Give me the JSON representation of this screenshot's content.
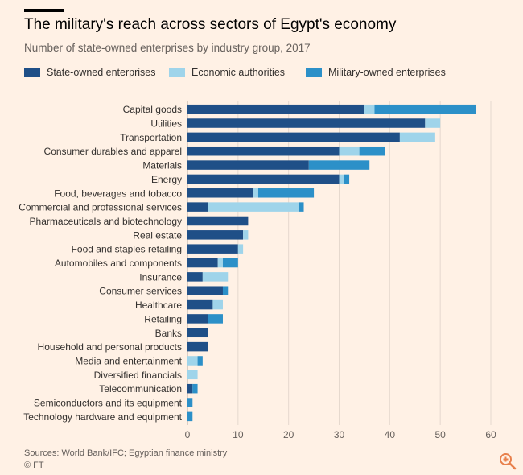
{
  "header": {
    "title": "The military's reach across sectors of Egypt's economy",
    "subtitle": "Number of state-owned enterprises by industry group, 2017"
  },
  "legend": {
    "items": [
      {
        "label": "State-owned enterprises",
        "color": "#1f4f87"
      },
      {
        "label": "Economic authorities",
        "color": "#9fd4ea"
      },
      {
        "label": "Military-owned enterprises",
        "color": "#2c90c8"
      }
    ]
  },
  "footer": {
    "source": "Sources: World Bank/IFC; Egyptian finance ministry",
    "credit": "© FT"
  },
  "toolbar": {
    "zoom_icon": "zoom-in-icon"
  },
  "chart_data": {
    "type": "bar",
    "orientation": "horizontal",
    "stacked": true,
    "title": "The military's reach across sectors of Egypt's economy",
    "subtitle": "Number of state-owned enterprises by industry group, 2017",
    "xlim": [
      0,
      60
    ],
    "xticks": [
      0,
      10,
      20,
      30,
      40,
      50,
      60
    ],
    "grid": "vertical",
    "legend_position": "top-left",
    "categories": [
      "Capital goods",
      "Utilities",
      "Transportation",
      "Consumer durables and apparel",
      "Materials",
      "Energy",
      "Food, beverages and tobacco",
      "Commercial and professional services",
      "Pharmaceuticals and biotechnology",
      "Real estate",
      "Food and staples retailing",
      "Automobiles and components",
      "Insurance",
      "Consumer services",
      "Healthcare",
      "Retailing",
      "Banks",
      "Household and personal products",
      "Media and entertainment",
      "Diversified financials",
      "Telecommunication",
      "Semiconductors and its equipment",
      "Technology hardware and equipment"
    ],
    "series": [
      {
        "name": "State-owned enterprises",
        "color": "#1f4f87",
        "values": [
          35,
          47,
          42,
          30,
          24,
          30,
          13,
          4,
          12,
          11,
          10,
          6,
          3,
          7,
          5,
          4,
          4,
          4,
          0,
          0,
          1,
          0,
          0
        ]
      },
      {
        "name": "Economic authorities",
        "color": "#9fd4ea",
        "values": [
          2,
          3,
          7,
          4,
          0,
          1,
          1,
          18,
          0,
          1,
          1,
          1,
          5,
          0,
          2,
          0,
          0,
          0,
          2,
          2,
          0,
          0,
          0
        ]
      },
      {
        "name": "Military-owned enterprises",
        "color": "#2c90c8",
        "values": [
          20,
          0,
          0,
          5,
          12,
          1,
          11,
          1,
          0,
          0,
          0,
          3,
          0,
          1,
          0,
          3,
          0,
          0,
          1,
          0,
          1,
          1,
          1
        ]
      }
    ]
  }
}
